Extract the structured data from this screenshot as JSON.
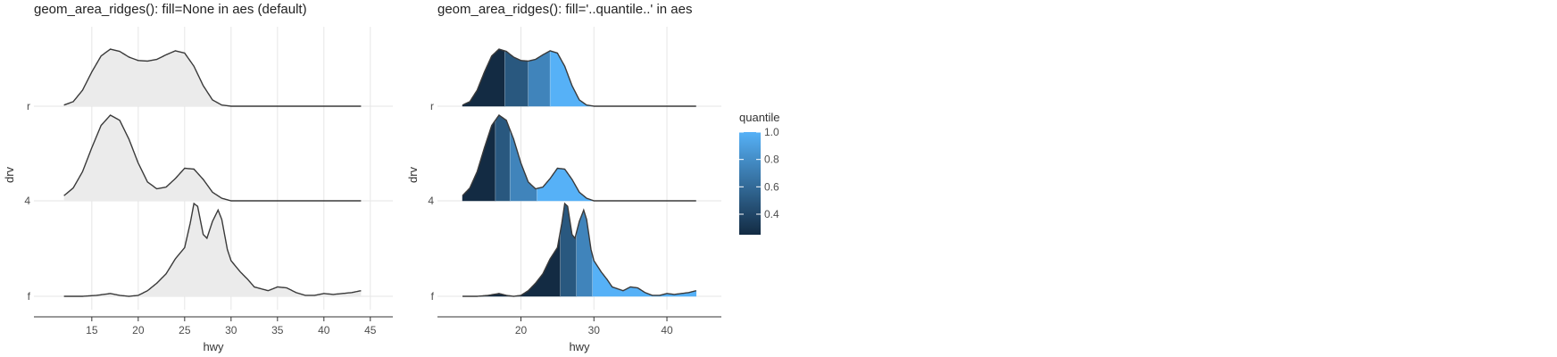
{
  "legend": {
    "title": "quantile",
    "min": 0.25,
    "max": 1.0,
    "ticks": [
      0.4,
      0.6,
      0.8,
      1.0
    ],
    "tick_labels": [
      "0.4",
      "0.6",
      "0.8",
      "1.0"
    ],
    "low_color": "#132b43",
    "high_color": "#56b1f7"
  },
  "chart_data": [
    {
      "type": "area",
      "subtype": "ridgeline",
      "title": "geom_area_ridges(): fill=None in aes (default)",
      "xlabel": "hwy",
      "ylabel": "drv",
      "xlim": [
        10.4,
        45.5
      ],
      "x_ticks": [
        15,
        20,
        25,
        30,
        35,
        40,
        45
      ],
      "x_tick_labels": [
        "15",
        "20",
        "25",
        "30",
        "35",
        "40",
        "45"
      ],
      "categories": [
        "f",
        "4",
        "r"
      ],
      "fill": "#ebebeb",
      "line_color": "#3a3a3a",
      "grid": true,
      "density": {
        "r": [
          [
            12,
            0.02
          ],
          [
            13,
            0.08
          ],
          [
            14,
            0.28
          ],
          [
            15,
            0.6
          ],
          [
            16,
            0.88
          ],
          [
            17,
            1.0
          ],
          [
            18,
            0.96
          ],
          [
            19,
            0.86
          ],
          [
            20,
            0.8
          ],
          [
            21,
            0.79
          ],
          [
            22,
            0.82
          ],
          [
            23,
            0.9
          ],
          [
            24,
            0.97
          ],
          [
            25,
            0.93
          ],
          [
            26,
            0.7
          ],
          [
            27,
            0.36
          ],
          [
            28,
            0.11
          ],
          [
            29,
            0.02
          ],
          [
            30,
            0.0
          ],
          [
            44,
            0.0
          ]
        ],
        "4": [
          [
            12,
            0.06
          ],
          [
            13,
            0.15
          ],
          [
            14,
            0.34
          ],
          [
            15,
            0.62
          ],
          [
            16,
            0.88
          ],
          [
            17,
            1.0
          ],
          [
            18,
            0.94
          ],
          [
            19,
            0.72
          ],
          [
            20,
            0.44
          ],
          [
            21,
            0.22
          ],
          [
            22,
            0.14
          ],
          [
            23,
            0.16
          ],
          [
            24,
            0.26
          ],
          [
            25,
            0.38
          ],
          [
            26,
            0.37
          ],
          [
            27,
            0.25
          ],
          [
            28,
            0.1
          ],
          [
            29,
            0.03
          ],
          [
            30,
            0.0
          ],
          [
            44,
            0.0
          ]
        ]
      },
      "density_f": [
        [
          12,
          0.0
        ],
        [
          14,
          0.0
        ],
        [
          15.5,
          0.01
        ],
        [
          17,
          0.03
        ],
        [
          18,
          0.01
        ],
        [
          19,
          0.0
        ],
        [
          20,
          0.01
        ],
        [
          21,
          0.06
        ],
        [
          22,
          0.14
        ],
        [
          23,
          0.24
        ],
        [
          24,
          0.4
        ],
        [
          25,
          0.52
        ],
        [
          25.6,
          0.78
        ],
        [
          26,
          0.99
        ],
        [
          26.4,
          0.96
        ],
        [
          27,
          0.66
        ],
        [
          27.4,
          0.62
        ],
        [
          28,
          0.8
        ],
        [
          28.6,
          0.92
        ],
        [
          29,
          0.82
        ],
        [
          29.6,
          0.5
        ],
        [
          30,
          0.38
        ],
        [
          31,
          0.26
        ],
        [
          31.8,
          0.18
        ],
        [
          32.5,
          0.1
        ],
        [
          34,
          0.06
        ],
        [
          35,
          0.1
        ],
        [
          36,
          0.09
        ],
        [
          37,
          0.04
        ],
        [
          38,
          0.01
        ],
        [
          39,
          0.01
        ],
        [
          40,
          0.03
        ],
        [
          41,
          0.02
        ],
        [
          42,
          0.03
        ],
        [
          43,
          0.04
        ],
        [
          44,
          0.06
        ]
      ]
    },
    {
      "type": "area",
      "subtype": "ridgeline",
      "title": "geom_area_ridges(): fill='..quantile..' in aes",
      "xlabel": "hwy",
      "ylabel": "drv",
      "xlim": [
        10.4,
        45.5
      ],
      "x_ticks": [
        20,
        30,
        40
      ],
      "x_tick_labels": [
        "20",
        "30",
        "40"
      ],
      "categories": [
        "f",
        "4",
        "r"
      ],
      "line_color": "#3a3a3a",
      "grid": true,
      "quantile_breaks": {
        "r": [
          17.8,
          21,
          24
        ],
        "4": [
          16.5,
          18.5,
          22.2
        ],
        "f": [
          25.4,
          27.6,
          29.8
        ]
      },
      "quantile_values": [
        0.25,
        0.5,
        0.75,
        1.0
      ]
    }
  ]
}
